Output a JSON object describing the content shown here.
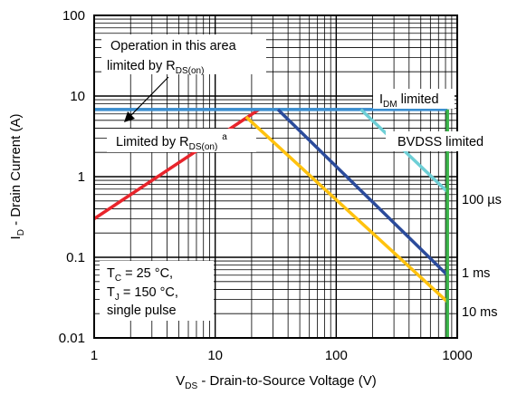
{
  "chart_data": {
    "type": "line",
    "x_scale": "log",
    "y_scale": "log",
    "xlim": [
      1,
      1000
    ],
    "ylim": [
      0.01,
      100
    ],
    "grid": true,
    "x_ticks": [
      "1",
      "10",
      "100",
      "1000"
    ],
    "y_ticks": [
      "100",
      "10",
      "1",
      "0.1",
      "0.01"
    ],
    "xlabel": {
      "main": "V",
      "sub": "DS",
      "rest": " - Drain-to-Source Voltage (V)"
    },
    "ylabel": {
      "main": "I",
      "sub": "D",
      "rest": " - Drain Current (A)"
    },
    "series": [
      {
        "name": "Limited by RDS(on)",
        "color": "#e8242b",
        "x": [
          1,
          23
        ],
        "y": [
          0.3,
          6.8
        ]
      },
      {
        "name": "IDM limited",
        "color": "#3a8ed0",
        "x": [
          1,
          830
        ],
        "y": [
          6.8,
          6.8
        ]
      },
      {
        "name": "100 µs",
        "color": "#6ecfd6",
        "x": [
          160,
          830
        ],
        "y": [
          6.8,
          0.65
        ]
      },
      {
        "name": "1 ms",
        "color": "#2b4b9b",
        "x": [
          33,
          830
        ],
        "y": [
          6.8,
          0.06
        ]
      },
      {
        "name": "10 ms",
        "color": "#ffc20e",
        "x": [
          18,
          830
        ],
        "y": [
          5.5,
          0.028
        ]
      },
      {
        "name": "BVDSS limited",
        "color": "#3bb54a",
        "x": [
          830,
          830
        ],
        "y": [
          0.01,
          6.8
        ]
      }
    ],
    "annotations": {
      "operation_area_line1": "Operation in this area",
      "operation_area_line2": {
        "main": "limited by R",
        "sub": "DS(on)"
      },
      "limited_by": {
        "main": "Limited by R",
        "sub": "DS(on)",
        "sup": "a"
      },
      "idm": {
        "main": "I",
        "sub": "DM",
        "rest": " limited"
      },
      "bvdss": "BVDSS limited",
      "label_100us": "100 µs",
      "label_1ms": "1 ms",
      "label_10ms": "10 ms",
      "conditions": {
        "tc": {
          "main": "T",
          "sub": "C",
          "rest": " = 25 °C,"
        },
        "tj": {
          "main": "T",
          "sub": "J",
          "rest": " = 150 °C,"
        },
        "pulse": "single pulse"
      }
    }
  }
}
